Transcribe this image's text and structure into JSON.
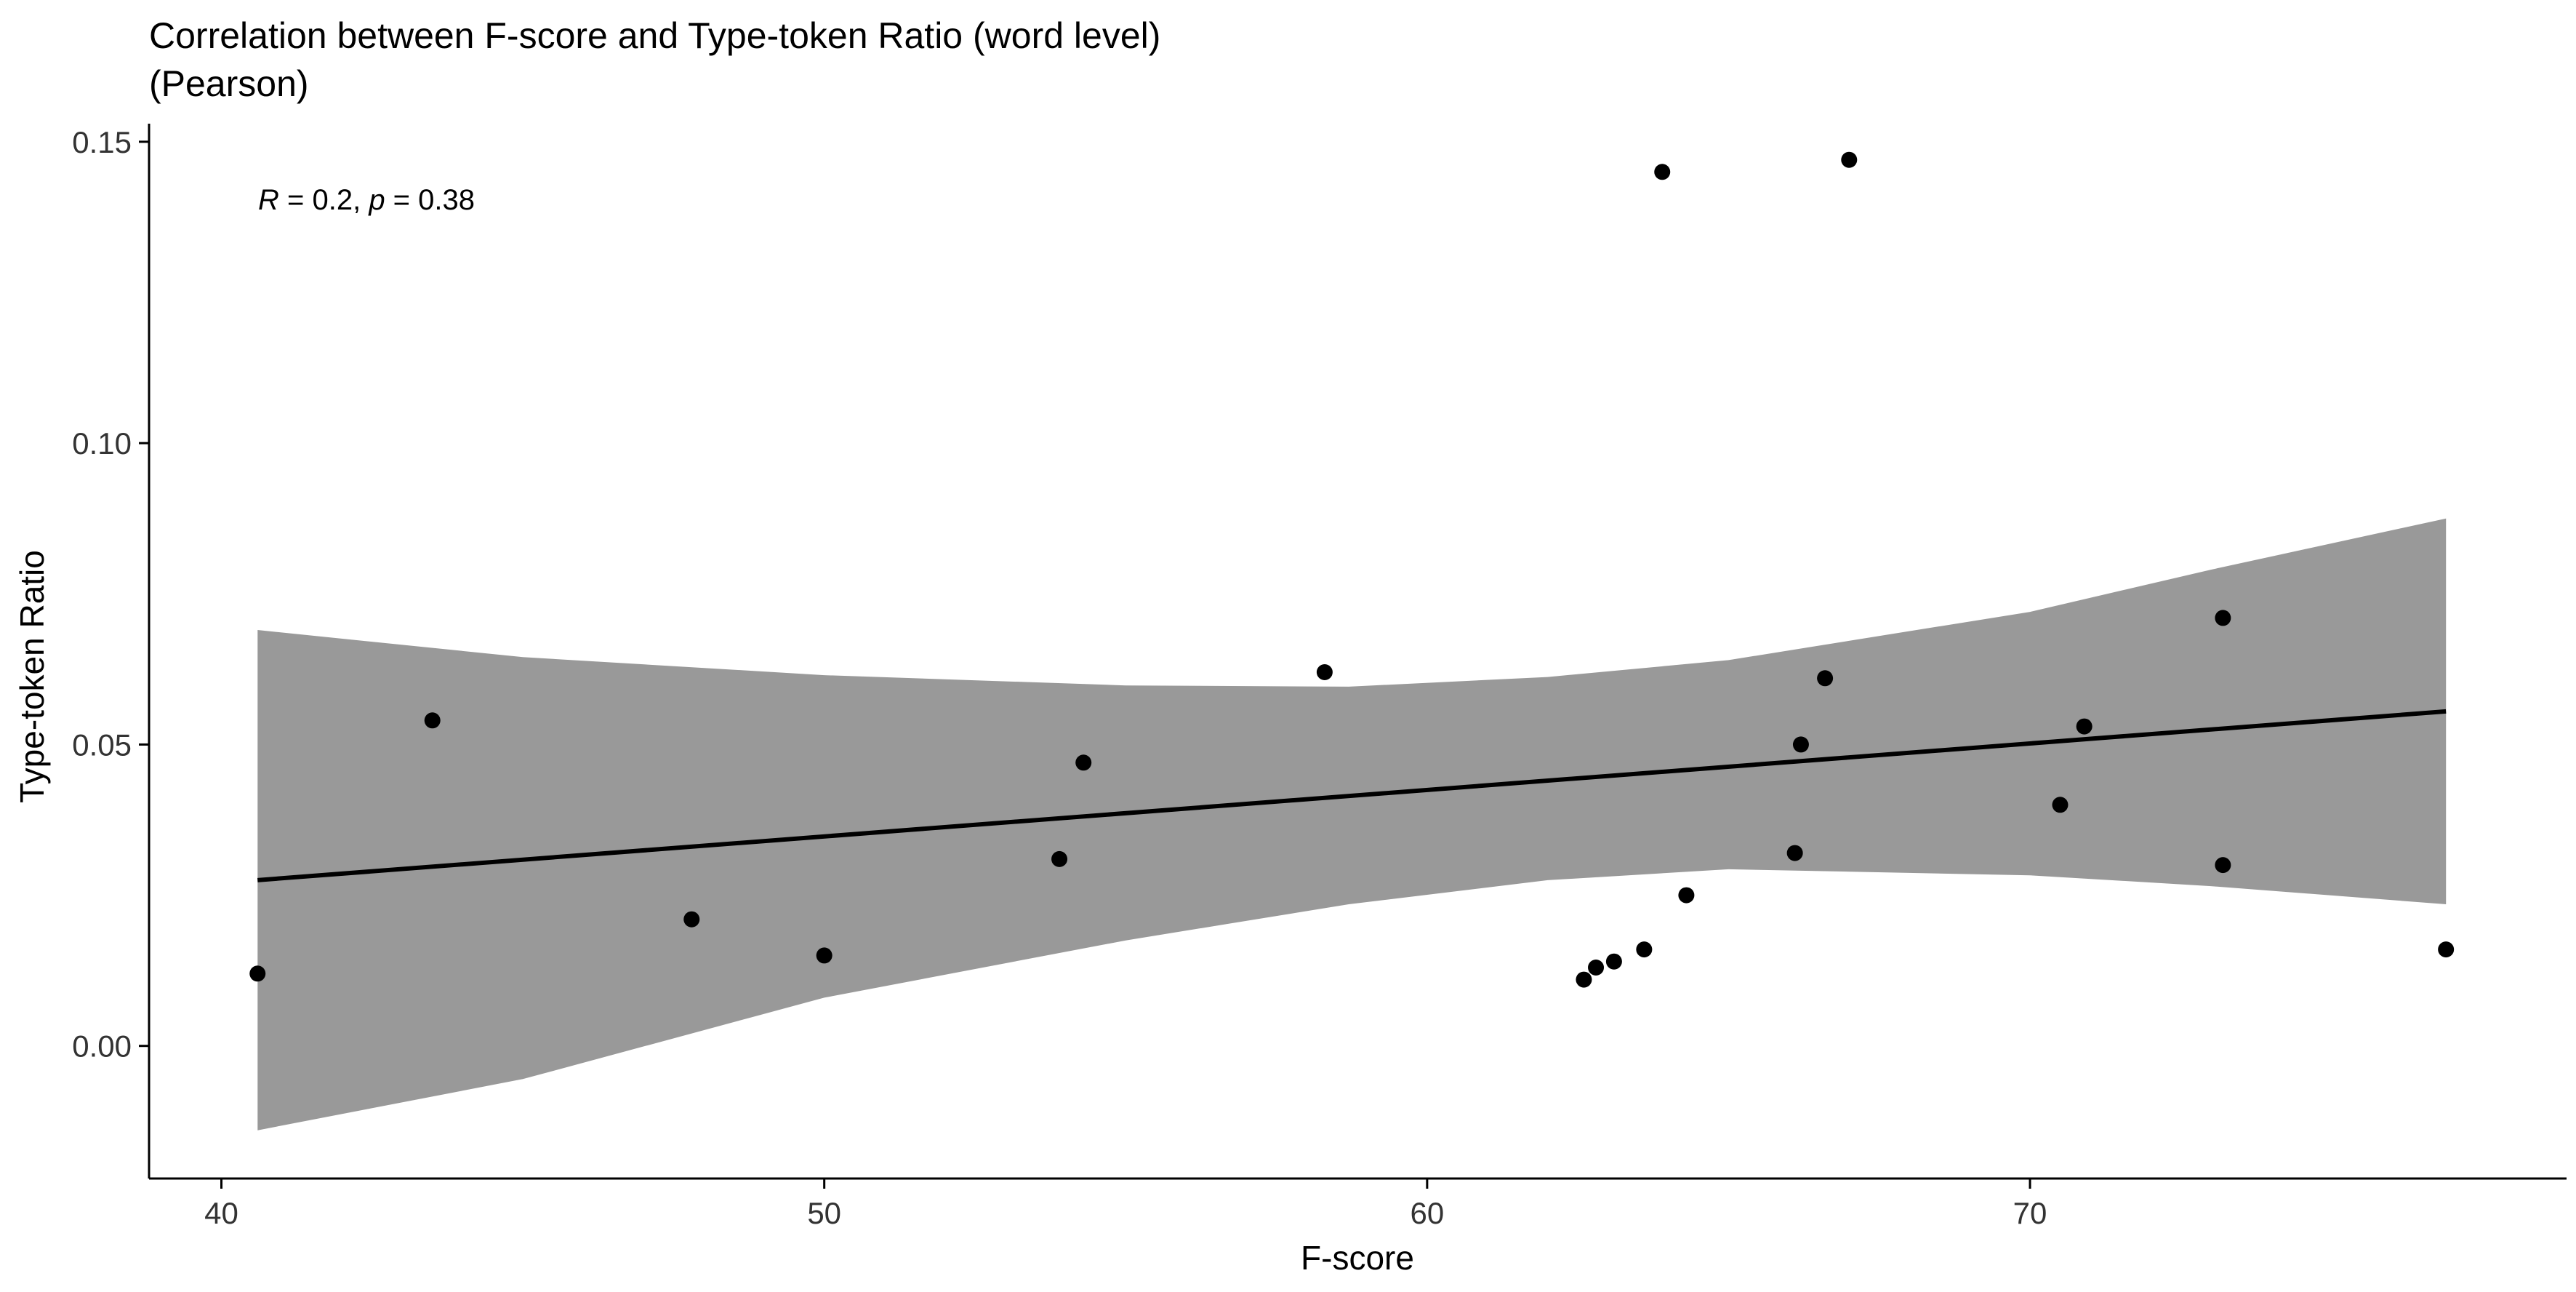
{
  "chart_data": {
    "type": "scatter",
    "title": "Correlation between F-score and Type-token Ratio (word level)",
    "subtitle": "(Pearson)",
    "xlabel": "F-score",
    "ylabel": "Type-token Ratio",
    "xlim": [
      38.8,
      78.9
    ],
    "ylim": [
      -0.022,
      0.153
    ],
    "x_ticks": [
      40,
      50,
      60,
      70
    ],
    "x_tick_labels": [
      "40",
      "50",
      "60",
      "70"
    ],
    "y_ticks": [
      0.0,
      0.05,
      0.1,
      0.15
    ],
    "y_tick_labels": [
      "0.00",
      "0.05",
      "0.10",
      "0.15"
    ],
    "grid": false,
    "annotation": {
      "r_symbol": "R",
      "r_text": " = 0.2, ",
      "p_symbol": "p",
      "p_text": " = 0.38"
    },
    "points": [
      {
        "x": 40.6,
        "y": 0.012
      },
      {
        "x": 43.5,
        "y": 0.054
      },
      {
        "x": 47.8,
        "y": 0.021
      },
      {
        "x": 50.0,
        "y": 0.015
      },
      {
        "x": 53.9,
        "y": 0.031
      },
      {
        "x": 54.3,
        "y": 0.047
      },
      {
        "x": 58.3,
        "y": 0.062
      },
      {
        "x": 62.6,
        "y": 0.011
      },
      {
        "x": 62.8,
        "y": 0.013
      },
      {
        "x": 63.1,
        "y": 0.014
      },
      {
        "x": 63.6,
        "y": 0.016
      },
      {
        "x": 63.9,
        "y": 0.145
      },
      {
        "x": 64.3,
        "y": 0.025
      },
      {
        "x": 66.1,
        "y": 0.032
      },
      {
        "x": 66.2,
        "y": 0.05
      },
      {
        "x": 66.6,
        "y": 0.061
      },
      {
        "x": 67.0,
        "y": 0.147
      },
      {
        "x": 70.5,
        "y": 0.04
      },
      {
        "x": 70.9,
        "y": 0.053
      },
      {
        "x": 73.2,
        "y": 0.071
      },
      {
        "x": 73.2,
        "y": 0.03
      },
      {
        "x": 76.9,
        "y": 0.016
      }
    ],
    "regression": {
      "x": [
        40.6,
        76.9
      ],
      "y": [
        0.0275,
        0.0555
      ]
    },
    "confidence_band": {
      "x": [
        40.6,
        45.0,
        50.0,
        55.0,
        58.7,
        62.0,
        65.0,
        70.0,
        73.0,
        76.9
      ],
      "upper": [
        0.069,
        0.0645,
        0.0615,
        0.0598,
        0.0596,
        0.0612,
        0.064,
        0.072,
        0.079,
        0.0875
      ],
      "lower": [
        -0.014,
        -0.0055,
        0.008,
        0.0175,
        0.0235,
        0.0275,
        0.0293,
        0.0283,
        0.0265,
        0.0235
      ]
    },
    "colors": {
      "points": "#000000",
      "line": "#000000",
      "band": "#999999",
      "axis": "#000000"
    }
  }
}
